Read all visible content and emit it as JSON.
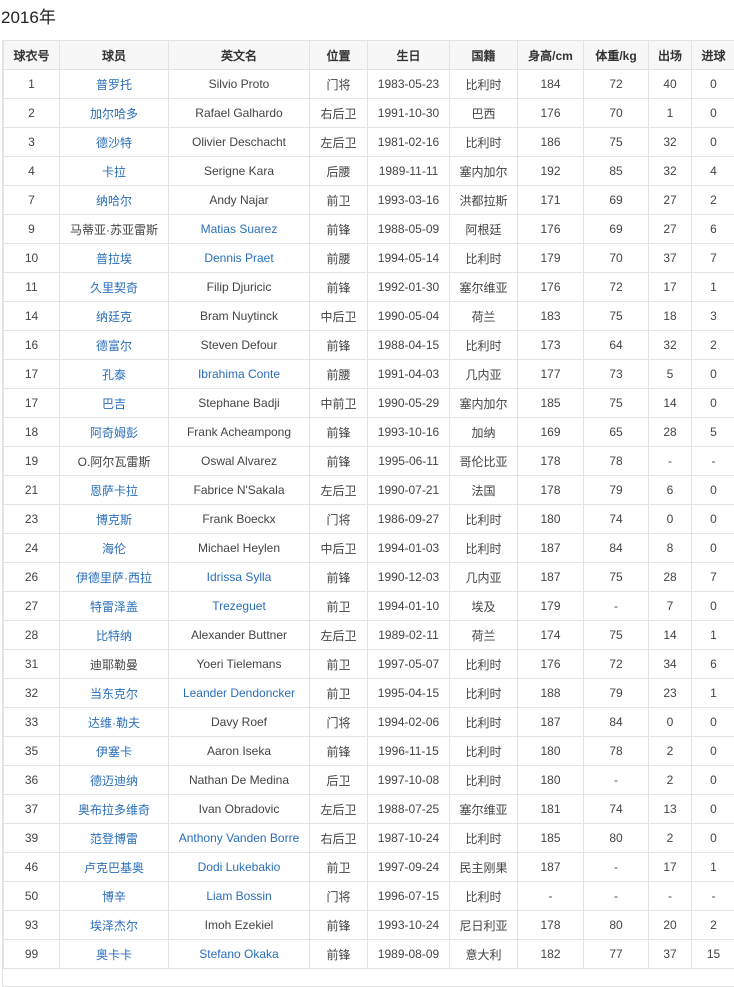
{
  "title": "2016年",
  "colors": {
    "link": "#2a6ebb",
    "text": "#444444",
    "header_bg": "#f7f7f7",
    "border": "#e3e3e3"
  },
  "columns": [
    "球衣号",
    "球员",
    "英文名",
    "位置",
    "生日",
    "国籍",
    "身高/cm",
    "体重/kg",
    "出场",
    "进球"
  ],
  "rows": [
    {
      "no": "1",
      "cn": "普罗托",
      "en": "Silvio Proto",
      "pos": "门将",
      "birth": "1983-05-23",
      "nat": "比利时",
      "h": "184",
      "w": "72",
      "apps": "40",
      "goals": "0",
      "cn_link": true,
      "en_link": false
    },
    {
      "no": "2",
      "cn": "加尔哈多",
      "en": "Rafael Galhardo",
      "pos": "右后卫",
      "birth": "1991-10-30",
      "nat": "巴西",
      "h": "176",
      "w": "70",
      "apps": "1",
      "goals": "0",
      "cn_link": true,
      "en_link": false
    },
    {
      "no": "3",
      "cn": "德沙特",
      "en": "Olivier Deschacht",
      "pos": "左后卫",
      "birth": "1981-02-16",
      "nat": "比利时",
      "h": "186",
      "w": "75",
      "apps": "32",
      "goals": "0",
      "cn_link": true,
      "en_link": false
    },
    {
      "no": "4",
      "cn": "卡拉",
      "en": "Serigne Kara",
      "pos": "后腰",
      "birth": "1989-11-11",
      "nat": "塞内加尔",
      "h": "192",
      "w": "85",
      "apps": "32",
      "goals": "4",
      "cn_link": true,
      "en_link": false
    },
    {
      "no": "7",
      "cn": "纳哈尔",
      "en": "Andy Najar",
      "pos": "前卫",
      "birth": "1993-03-16",
      "nat": "洪都拉斯",
      "h": "171",
      "w": "69",
      "apps": "27",
      "goals": "2",
      "cn_link": true,
      "en_link": false
    },
    {
      "no": "9",
      "cn": "马蒂亚·苏亚雷斯",
      "en": "Matias Suarez",
      "pos": "前锋",
      "birth": "1988-05-09",
      "nat": "阿根廷",
      "h": "176",
      "w": "69",
      "apps": "27",
      "goals": "6",
      "cn_link": false,
      "en_link": true
    },
    {
      "no": "10",
      "cn": "普拉埃",
      "en": "Dennis Praet",
      "pos": "前腰",
      "birth": "1994-05-14",
      "nat": "比利时",
      "h": "179",
      "w": "70",
      "apps": "37",
      "goals": "7",
      "cn_link": true,
      "en_link": true
    },
    {
      "no": "11",
      "cn": "久里契奇",
      "en": "Filip Djuricic",
      "pos": "前锋",
      "birth": "1992-01-30",
      "nat": "塞尔维亚",
      "h": "176",
      "w": "72",
      "apps": "17",
      "goals": "1",
      "cn_link": true,
      "en_link": false
    },
    {
      "no": "14",
      "cn": "纳廷克",
      "en": "Bram Nuytinck",
      "pos": "中后卫",
      "birth": "1990-05-04",
      "nat": "荷兰",
      "h": "183",
      "w": "75",
      "apps": "18",
      "goals": "3",
      "cn_link": true,
      "en_link": false
    },
    {
      "no": "16",
      "cn": "德富尔",
      "en": "Steven Defour",
      "pos": "前锋",
      "birth": "1988-04-15",
      "nat": "比利时",
      "h": "173",
      "w": "64",
      "apps": "32",
      "goals": "2",
      "cn_link": true,
      "en_link": false
    },
    {
      "no": "17",
      "cn": "孔泰",
      "en": "Ibrahima Conte",
      "pos": "前腰",
      "birth": "1991-04-03",
      "nat": "几内亚",
      "h": "177",
      "w": "73",
      "apps": "5",
      "goals": "0",
      "cn_link": true,
      "en_link": true
    },
    {
      "no": "17",
      "cn": "巴吉",
      "en": "Stephane Badji",
      "pos": "中前卫",
      "birth": "1990-05-29",
      "nat": "塞内加尔",
      "h": "185",
      "w": "75",
      "apps": "14",
      "goals": "0",
      "cn_link": true,
      "en_link": false
    },
    {
      "no": "18",
      "cn": "阿奇姆彭",
      "en": "Frank Acheampong",
      "pos": "前锋",
      "birth": "1993-10-16",
      "nat": "加纳",
      "h": "169",
      "w": "65",
      "apps": "28",
      "goals": "5",
      "cn_link": true,
      "en_link": false
    },
    {
      "no": "19",
      "cn": "O.阿尔瓦雷斯",
      "en": "Oswal Alvarez",
      "pos": "前锋",
      "birth": "1995-06-11",
      "nat": "哥伦比亚",
      "h": "178",
      "w": "78",
      "apps": "-",
      "goals": "-",
      "cn_link": false,
      "en_link": false
    },
    {
      "no": "21",
      "cn": "恩萨卡拉",
      "en": "Fabrice N'Sakala",
      "pos": "左后卫",
      "birth": "1990-07-21",
      "nat": "法国",
      "h": "178",
      "w": "79",
      "apps": "6",
      "goals": "0",
      "cn_link": true,
      "en_link": false
    },
    {
      "no": "23",
      "cn": "博克斯",
      "en": "Frank Boeckx",
      "pos": "门将",
      "birth": "1986-09-27",
      "nat": "比利时",
      "h": "180",
      "w": "74",
      "apps": "0",
      "goals": "0",
      "cn_link": true,
      "en_link": false
    },
    {
      "no": "24",
      "cn": "海伦",
      "en": "Michael Heylen",
      "pos": "中后卫",
      "birth": "1994-01-03",
      "nat": "比利时",
      "h": "187",
      "w": "84",
      "apps": "8",
      "goals": "0",
      "cn_link": true,
      "en_link": false
    },
    {
      "no": "26",
      "cn": "伊德里萨·西拉",
      "en": "Idrissa Sylla",
      "pos": "前锋",
      "birth": "1990-12-03",
      "nat": "几内亚",
      "h": "187",
      "w": "75",
      "apps": "28",
      "goals": "7",
      "cn_link": true,
      "en_link": true
    },
    {
      "no": "27",
      "cn": "特雷泽盖",
      "en": "Trezeguet",
      "pos": "前卫",
      "birth": "1994-01-10",
      "nat": "埃及",
      "h": "179",
      "w": "-",
      "apps": "7",
      "goals": "0",
      "cn_link": true,
      "en_link": true
    },
    {
      "no": "28",
      "cn": "比特纳",
      "en": "Alexander Buttner",
      "pos": "左后卫",
      "birth": "1989-02-11",
      "nat": "荷兰",
      "h": "174",
      "w": "75",
      "apps": "14",
      "goals": "1",
      "cn_link": true,
      "en_link": false
    },
    {
      "no": "31",
      "cn": "迪耶勒曼",
      "en": "Yoeri Tielemans",
      "pos": "前卫",
      "birth": "1997-05-07",
      "nat": "比利时",
      "h": "176",
      "w": "72",
      "apps": "34",
      "goals": "6",
      "cn_link": false,
      "en_link": false
    },
    {
      "no": "32",
      "cn": "当东克尔",
      "en": "Leander Dendoncker",
      "pos": "前卫",
      "birth": "1995-04-15",
      "nat": "比利时",
      "h": "188",
      "w": "79",
      "apps": "23",
      "goals": "1",
      "cn_link": true,
      "en_link": true
    },
    {
      "no": "33",
      "cn": "达维·勒夫",
      "en": "Davy Roef",
      "pos": "门将",
      "birth": "1994-02-06",
      "nat": "比利时",
      "h": "187",
      "w": "84",
      "apps": "0",
      "goals": "0",
      "cn_link": true,
      "en_link": false
    },
    {
      "no": "35",
      "cn": "伊塞卡",
      "en": "Aaron Iseka",
      "pos": "前锋",
      "birth": "1996-11-15",
      "nat": "比利时",
      "h": "180",
      "w": "78",
      "apps": "2",
      "goals": "0",
      "cn_link": true,
      "en_link": false
    },
    {
      "no": "36",
      "cn": "德迈迪纳",
      "en": "Nathan De Medina",
      "pos": "后卫",
      "birth": "1997-10-08",
      "nat": "比利时",
      "h": "180",
      "w": "-",
      "apps": "2",
      "goals": "0",
      "cn_link": true,
      "en_link": false
    },
    {
      "no": "37",
      "cn": "奥布拉多维奇",
      "en": "Ivan Obradovic",
      "pos": "左后卫",
      "birth": "1988-07-25",
      "nat": "塞尔维亚",
      "h": "181",
      "w": "74",
      "apps": "13",
      "goals": "0",
      "cn_link": true,
      "en_link": false
    },
    {
      "no": "39",
      "cn": "范登博雷",
      "en": "Anthony Vanden Borre",
      "pos": "右后卫",
      "birth": "1987-10-24",
      "nat": "比利时",
      "h": "185",
      "w": "80",
      "apps": "2",
      "goals": "0",
      "cn_link": true,
      "en_link": true
    },
    {
      "no": "46",
      "cn": "卢克巴基奥",
      "en": "Dodi Lukebakio",
      "pos": "前卫",
      "birth": "1997-09-24",
      "nat": "民主刚果",
      "h": "187",
      "w": "-",
      "apps": "17",
      "goals": "1",
      "cn_link": true,
      "en_link": true
    },
    {
      "no": "50",
      "cn": "博辛",
      "en": "Liam Bossin",
      "pos": "门将",
      "birth": "1996-07-15",
      "nat": "比利时",
      "h": "-",
      "w": "-",
      "apps": "-",
      "goals": "-",
      "cn_link": true,
      "en_link": true
    },
    {
      "no": "93",
      "cn": "埃泽杰尔",
      "en": "Imoh Ezekiel",
      "pos": "前锋",
      "birth": "1993-10-24",
      "nat": "尼日利亚",
      "h": "178",
      "w": "80",
      "apps": "20",
      "goals": "2",
      "cn_link": true,
      "en_link": false
    },
    {
      "no": "99",
      "cn": "奥卡卡",
      "en": "Stefano Okaka",
      "pos": "前锋",
      "birth": "1989-08-09",
      "nat": "意大利",
      "h": "182",
      "w": "77",
      "apps": "37",
      "goals": "15",
      "cn_link": true,
      "en_link": true
    }
  ]
}
